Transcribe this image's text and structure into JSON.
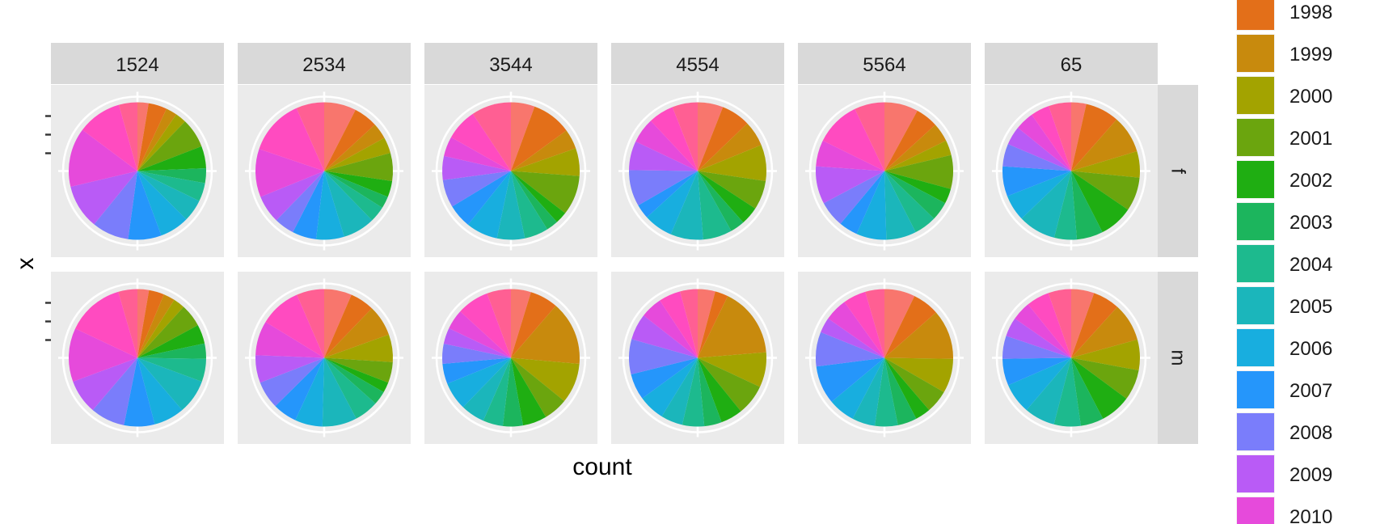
{
  "chart_data": {
    "type": "pie",
    "xlabel": "count",
    "ylabel": "x",
    "facet_columns": [
      "1524",
      "2534",
      "3544",
      "4554",
      "5564",
      "65"
    ],
    "facet_rows": [
      "f",
      "m"
    ],
    "legend_position": "right",
    "legend": [
      {
        "label": "1998",
        "color": "#E36F19"
      },
      {
        "label": "1999",
        "color": "#C88A0D"
      },
      {
        "label": "2000",
        "color": "#A3A300"
      },
      {
        "label": "2001",
        "color": "#6BA50E"
      },
      {
        "label": "2002",
        "color": "#1FAE12"
      },
      {
        "label": "2003",
        "color": "#1CB55D"
      },
      {
        "label": "2004",
        "color": "#1DBA8E"
      },
      {
        "label": "2005",
        "color": "#1BB6BB"
      },
      {
        "label": "2006",
        "color": "#18AEDF"
      },
      {
        "label": "2007",
        "color": "#2596FB"
      },
      {
        "label": "2008",
        "color": "#7A7DFB"
      },
      {
        "label": "2009",
        "color": "#B95BF6"
      },
      {
        "label": "2010",
        "color": "#E64ADB"
      }
    ],
    "series_colors": [
      "#F8766D",
      "#E36F19",
      "#C88A0D",
      "#A3A300",
      "#6BA50E",
      "#1FAE12",
      "#1CB55D",
      "#1DBA8E",
      "#1BB6BB",
      "#18AEDF",
      "#2596FB",
      "#7A7DFB",
      "#B95BF6",
      "#E64ADB",
      "#FF4BC0",
      "#FF5F93"
    ],
    "panels": [
      {
        "row": "f",
        "col": "1524",
        "values": [
          3,
          5,
          3,
          3,
          8,
          6,
          4,
          5,
          6,
          8,
          9,
          10,
          12,
          16,
          12,
          5
        ]
      },
      {
        "row": "f",
        "col": "2534",
        "values": [
          8,
          6,
          4,
          4,
          7,
          4,
          3,
          4,
          8,
          7,
          6,
          5,
          7,
          12,
          14,
          7
        ]
      },
      {
        "row": "f",
        "col": "3544",
        "values": [
          6,
          10,
          5,
          7,
          10,
          3,
          3,
          6,
          7,
          8,
          6,
          7,
          6,
          5,
          8,
          10
        ]
      },
      {
        "row": "f",
        "col": "4554",
        "values": [
          7,
          8,
          7,
          10,
          8,
          5,
          4,
          8,
          9,
          8,
          4,
          10,
          8,
          7,
          7,
          7
        ]
      },
      {
        "row": "f",
        "col": "5564",
        "values": [
          9,
          6,
          5,
          4,
          9,
          4,
          5,
          6,
          8,
          8,
          5,
          7,
          10,
          7,
          12,
          8
        ]
      },
      {
        "row": "f",
        "col": "65",
        "values": [
          4,
          9,
          10,
          7,
          9,
          9,
          7,
          6,
          10,
          7,
          8,
          6,
          5,
          5,
          5,
          6
        ]
      },
      {
        "row": "m",
        "col": "1524",
        "values": [
          3,
          4,
          3,
          3,
          6,
          5,
          4,
          6,
          9,
          8,
          8,
          9,
          9,
          14,
          15,
          5
        ]
      },
      {
        "row": "m",
        "col": "2534",
        "values": [
          8,
          7,
          9,
          8,
          6,
          3,
          4,
          7,
          10,
          8,
          7,
          8,
          8,
          10,
          12,
          8
        ]
      },
      {
        "row": "m",
        "col": "3544",
        "values": [
          5,
          7,
          16,
          10,
          6,
          6,
          5,
          5,
          6,
          7,
          5,
          5,
          4,
          5,
          8,
          6
        ]
      },
      {
        "row": "m",
        "col": "4554",
        "values": [
          4,
          3,
          16,
          8,
          7,
          5,
          4,
          5,
          5,
          6,
          6,
          8,
          6,
          5,
          5,
          4
        ]
      },
      {
        "row": "m",
        "col": "5564",
        "values": [
          8,
          7,
          13,
          9,
          6,
          4,
          5,
          6,
          6,
          7,
          10,
          9,
          4,
          6,
          6,
          5
        ]
      },
      {
        "row": "m",
        "col": "65",
        "values": [
          6,
          7,
          10,
          8,
          8,
          8,
          6,
          7,
          8,
          8,
          7,
          6,
          5,
          5,
          6,
          6
        ]
      }
    ]
  }
}
